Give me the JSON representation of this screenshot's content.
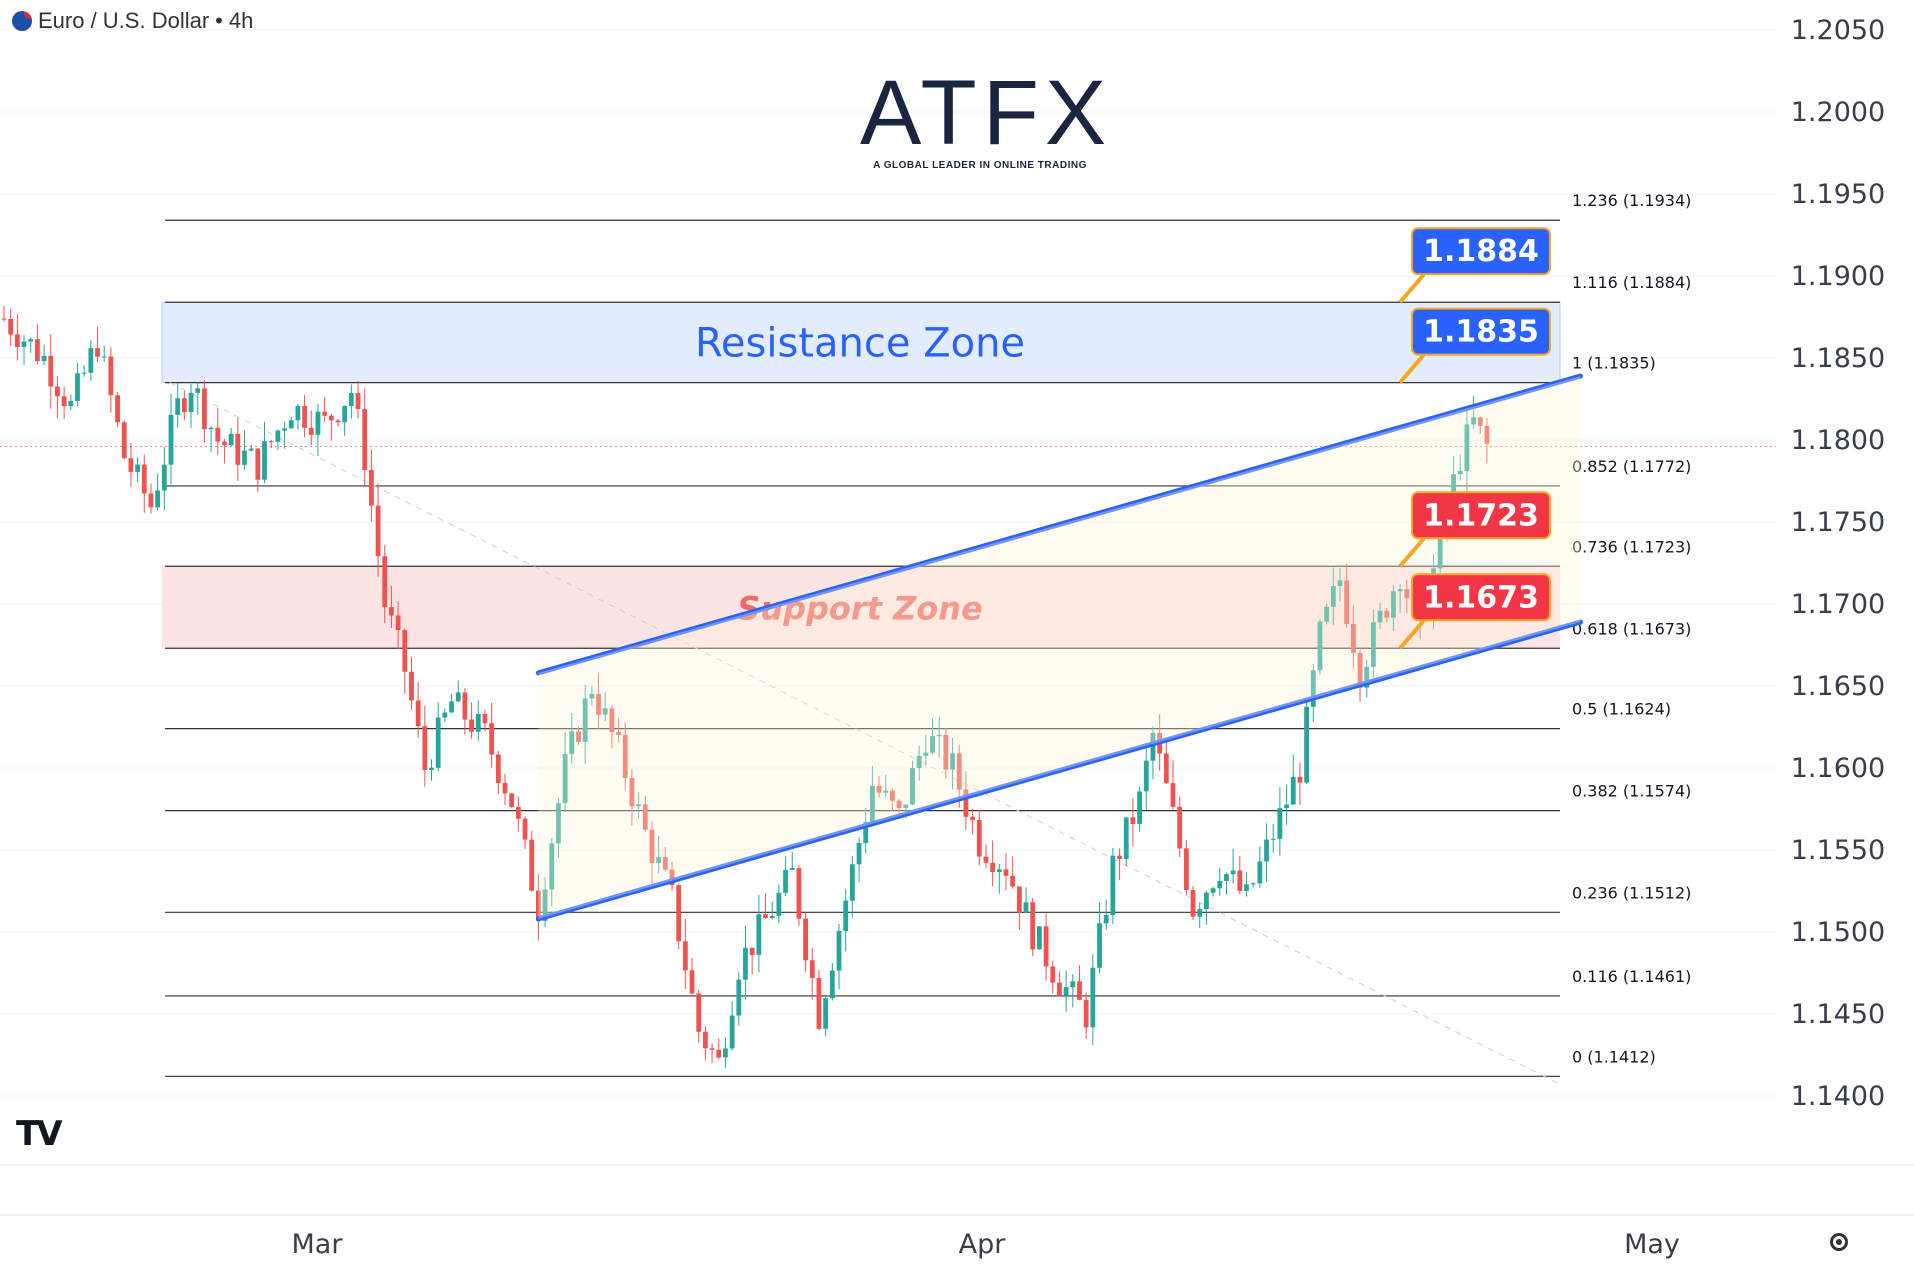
{
  "header": {
    "symbol": "Euro / U.S. Dollar",
    "separator": "•",
    "interval": "4h"
  },
  "logo": {
    "brand": "ATFX",
    "tagline": "A GLOBAL LEADER IN ONLINE TRADING"
  },
  "watermark": "TV",
  "colors": {
    "up": "#26a69a",
    "down": "#ef5350",
    "channel": "#2962ff",
    "resistance_fill": "#e3ecfd",
    "support_fill": "#fde4e4",
    "resistance_text": "#2962ff",
    "support_text": "#ef5350",
    "badge_blue": "#2962ff",
    "badge_red": "#f23645"
  },
  "chart_data": {
    "type": "candlestick",
    "y_axis": {
      "min": 1.137,
      "max": 1.207,
      "ticks": [
        "1.2050",
        "1.2000",
        "1.1950",
        "1.1900",
        "1.1850",
        "1.1800",
        "1.1750",
        "1.1700",
        "1.1650",
        "1.1600",
        "1.1550",
        "1.1500",
        "1.1450",
        "1.1400"
      ]
    },
    "x_axis": {
      "labels": [
        "Mar",
        "Apr",
        "May"
      ]
    },
    "resistance_zone": {
      "label": "Resistance Zone",
      "from": 1.1835,
      "to": 1.1884
    },
    "support_zone": {
      "label": "Support Zone",
      "from": 1.1673,
      "to": 1.1723
    },
    "fib_levels": [
      {
        "label": "1.236 (1.1934)",
        "value": 1.1934
      },
      {
        "label": "1.116 (1.1884)",
        "value": 1.1884
      },
      {
        "label": "1 (1.1835)",
        "value": 1.1835
      },
      {
        "label": "0.852 (1.1772)",
        "value": 1.1772
      },
      {
        "label": "0.736 (1.1723)",
        "value": 1.1723
      },
      {
        "label": "0.618 (1.1673)",
        "value": 1.1673
      },
      {
        "label": "0.5 (1.1624)",
        "value": 1.1624
      },
      {
        "label": "0.382 (1.1574)",
        "value": 1.1574
      },
      {
        "label": "0.236 (1.1512)",
        "value": 1.1512
      },
      {
        "label": "0.116 (1.1461)",
        "value": 1.1461
      },
      {
        "label": "0 (1.1412)",
        "value": 1.1412
      }
    ],
    "badges": [
      {
        "label": "1.1884",
        "value": 1.1884,
        "color": "blue"
      },
      {
        "label": "1.1835",
        "value": 1.1835,
        "color": "blue"
      },
      {
        "label": "1.1723",
        "value": 1.1723,
        "color": "red"
      },
      {
        "label": "1.1673",
        "value": 1.1673,
        "color": "red"
      }
    ],
    "channel_lines": [
      {
        "name": "upper",
        "from": {
          "bar": 80,
          "price": 1.1658
        },
        "to": {
          "bar": 236,
          "price": 1.1839
        }
      },
      {
        "name": "lower",
        "from": {
          "bar": 80,
          "price": 1.1508
        },
        "to": {
          "bar": 236,
          "price": 1.1689
        }
      }
    ],
    "current_price": 1.1796,
    "price_path": [
      [
        0,
        1.1874
      ],
      [
        6,
        1.185
      ],
      [
        10,
        1.182
      ],
      [
        14,
        1.186
      ],
      [
        18,
        1.179
      ],
      [
        22,
        1.176
      ],
      [
        26,
        1.182
      ],
      [
        28,
        1.1835
      ],
      [
        32,
        1.18
      ],
      [
        38,
        1.1785
      ],
      [
        43,
        1.182
      ],
      [
        48,
        1.181
      ],
      [
        52,
        1.183
      ],
      [
        54,
        1.179
      ],
      [
        57,
        1.17
      ],
      [
        60,
        1.166
      ],
      [
        63,
        1.16
      ],
      [
        67,
        1.164
      ],
      [
        72,
        1.162
      ],
      [
        76,
        1.158
      ],
      [
        80,
        1.1515
      ],
      [
        84,
        1.16
      ],
      [
        88,
        1.165
      ],
      [
        92,
        1.161
      ],
      [
        96,
        1.156
      ],
      [
        100,
        1.152
      ],
      [
        104,
        1.144
      ],
      [
        107,
        1.142
      ],
      [
        110,
        1.148
      ],
      [
        113,
        1.15
      ],
      [
        118,
        1.1535
      ],
      [
        122,
        1.145
      ],
      [
        126,
        1.152
      ],
      [
        130,
        1.159
      ],
      [
        134,
        1.157
      ],
      [
        138,
        1.162
      ],
      [
        142,
        1.16
      ],
      [
        146,
        1.1555
      ],
      [
        150,
        1.154
      ],
      [
        154,
        1.15
      ],
      [
        158,
        1.147
      ],
      [
        162,
        1.145
      ],
      [
        166,
        1.154
      ],
      [
        170,
        1.158
      ],
      [
        172,
        1.162
      ],
      [
        175,
        1.157
      ],
      [
        178,
        1.1515
      ],
      [
        182,
        1.154
      ],
      [
        186,
        1.152
      ],
      [
        190,
        1.156
      ],
      [
        194,
        1.16
      ],
      [
        197,
        1.168
      ],
      [
        200,
        1.1715
      ],
      [
        203,
        1.166
      ],
      [
        206,
        1.169
      ],
      [
        209,
        1.172
      ],
      [
        212,
        1.168
      ],
      [
        215,
        1.174
      ],
      [
        218,
        1.179
      ],
      [
        220,
        1.181
      ],
      [
        222,
        1.1796
      ]
    ],
    "bar_count": 223
  }
}
